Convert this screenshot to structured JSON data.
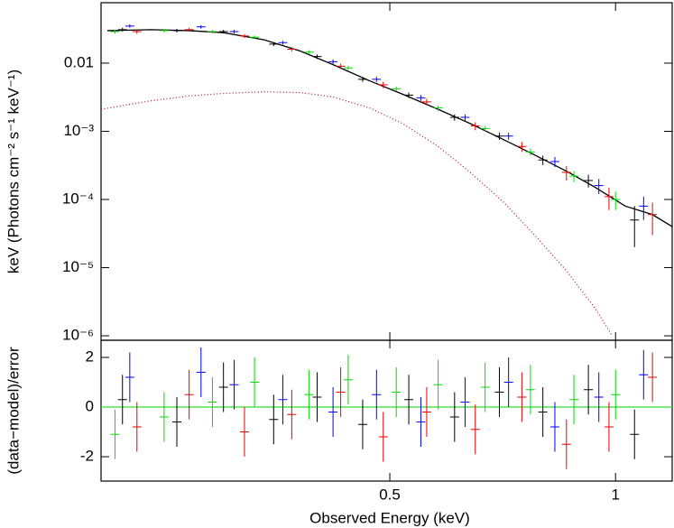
{
  "chart_data": [
    {
      "type": "errorbar",
      "y_label": "keV (Photons cm⁻² s⁻¹ keV⁻¹)",
      "log_x": true,
      "log_y": true,
      "xlim": [
        0.206,
        1.19
      ],
      "ylim": [
        8.6e-07,
        0.077
      ],
      "yticks": [
        {
          "value": 1e-06,
          "label": "10⁻⁶"
        },
        {
          "value": 1e-05,
          "label": "10⁻⁵"
        },
        {
          "value": 0.0001,
          "label": "10⁻⁴"
        },
        {
          "value": 0.001,
          "label": "10⁻³"
        },
        0.01
      ],
      "series": [
        {
          "color": "#000000",
          "x": [
            0.22,
            0.26,
            0.3,
            0.35,
            0.4,
            0.46,
            0.53,
            0.61,
            0.7,
            0.8,
            0.92,
            1.06
          ],
          "values": [
            0.031,
            0.03,
            0.029,
            0.019,
            0.0125,
            0.0058,
            0.0034,
            0.0016,
            0.00085,
            0.00038,
            0.00019,
            5e-05
          ],
          "errors": [
            0.002,
            0.0018,
            0.0017,
            0.0012,
            0.0009,
            0.0005,
            0.0003,
            0.00017,
            0.0001,
            6e-05,
            4e-05,
            3e-05
          ]
        },
        {
          "color": "#ee0000",
          "x": [
            0.23,
            0.27,
            0.32,
            0.37,
            0.43,
            0.49,
            0.56,
            0.65,
            0.75,
            0.86,
            0.98,
            1.12
          ],
          "values": [
            0.029,
            0.031,
            0.025,
            0.016,
            0.009,
            0.0048,
            0.0027,
            0.0012,
            0.0006,
            0.00025,
            0.00011,
            6e-05
          ],
          "errors": [
            0.002,
            0.0019,
            0.0016,
            0.0011,
            0.0008,
            0.0005,
            0.0003,
            0.00016,
            0.0001,
            6e-05,
            4e-05,
            3e-05
          ]
        },
        {
          "color": "#00dd00",
          "x": [
            0.215,
            0.25,
            0.29,
            0.33,
            0.39,
            0.44,
            0.51,
            0.58,
            0.67,
            0.77,
            0.88,
            1.0
          ],
          "values": [
            0.029,
            0.03,
            0.029,
            0.024,
            0.0145,
            0.0085,
            0.0042,
            0.0022,
            0.0011,
            0.0005,
            0.00022,
            0.0001
          ],
          "errors": [
            0.002,
            0.0018,
            0.0017,
            0.0014,
            0.001,
            0.0006,
            0.0003,
            0.0002,
            0.0001,
            6e-05,
            4e-05,
            3e-05
          ]
        },
        {
          "color": "#0000ff",
          "x": [
            0.225,
            0.28,
            0.31,
            0.36,
            0.42,
            0.48,
            0.55,
            0.63,
            0.72,
            0.83,
            0.95,
            1.09
          ],
          "values": [
            0.035,
            0.034,
            0.029,
            0.02,
            0.0105,
            0.0058,
            0.0031,
            0.0016,
            0.00085,
            0.00036,
            0.00016,
            8e-05
          ],
          "errors": [
            0.002,
            0.0019,
            0.0017,
            0.0012,
            0.0008,
            0.0005,
            0.0003,
            0.00017,
            0.0001,
            6e-05,
            4e-05,
            3e-05
          ]
        }
      ],
      "models": [
        {
          "color": "#000000",
          "style": "solid",
          "x": [
            0.21,
            0.24,
            0.27,
            0.3,
            0.34,
            0.38,
            0.42,
            0.47,
            0.52,
            0.58,
            0.64,
            0.71,
            0.78,
            0.86,
            0.94,
            1.03,
            1.12,
            1.19
          ],
          "values": [
            0.03,
            0.031,
            0.03,
            0.028,
            0.022,
            0.015,
            0.0095,
            0.0055,
            0.0035,
            0.0021,
            0.0013,
            0.00075,
            0.00045,
            0.00026,
            0.00015,
            8e-05,
            6e-05,
            4e-05
          ]
        },
        {
          "color": "#aa2222",
          "style": "dotted",
          "x": [
            0.206,
            0.24,
            0.27,
            0.3,
            0.34,
            0.38,
            0.42,
            0.47,
            0.52,
            0.58,
            0.64,
            0.71,
            0.78,
            0.86,
            0.94,
            0.99
          ],
          "values": [
            0.0021,
            0.0028,
            0.0033,
            0.0036,
            0.0038,
            0.0037,
            0.0032,
            0.0022,
            0.0013,
            0.0006,
            0.00025,
            9e-05,
            3e-05,
            9e-06,
            2.5e-06,
            1e-06
          ]
        }
      ]
    },
    {
      "type": "errorbar",
      "x_label": "Observed Energy (keV)",
      "y_label": "(data−model)/error",
      "log_x": true,
      "xlim": [
        0.206,
        1.19
      ],
      "ylim": [
        -2.98,
        2.69
      ],
      "xticks": [
        0.5,
        1
      ],
      "yticks": [
        -2,
        0,
        2
      ],
      "zero_line_color": "#33dd33",
      "series": [
        {
          "color": "#000000",
          "x": [
            0.22,
            0.26,
            0.3,
            0.35,
            0.4,
            0.46,
            0.53,
            0.61,
            0.7,
            0.8,
            0.92,
            1.06
          ],
          "values": [
            0.3,
            -0.6,
            0.8,
            -0.5,
            0.4,
            -0.7,
            0.3,
            -0.4,
            0.6,
            -0.2,
            0.7,
            -1.1
          ],
          "errors": [
            1,
            1,
            1,
            1,
            1,
            1,
            1,
            1,
            1,
            1,
            1,
            1
          ]
        },
        {
          "color": "#ee0000",
          "x": [
            0.23,
            0.27,
            0.32,
            0.37,
            0.43,
            0.49,
            0.56,
            0.65,
            0.75,
            0.86,
            0.98,
            1.12
          ],
          "values": [
            -0.8,
            0.5,
            -1.0,
            -0.3,
            0.6,
            -1.2,
            -0.2,
            -0.9,
            0.4,
            -1.5,
            -0.8,
            1.2
          ],
          "errors": [
            1,
            1,
            1,
            1,
            1,
            1,
            1,
            1,
            1,
            1,
            1,
            1
          ]
        },
        {
          "color": "#00dd00",
          "x": [
            0.215,
            0.25,
            0.29,
            0.33,
            0.39,
            0.44,
            0.51,
            0.58,
            0.67,
            0.77,
            0.88,
            1.0
          ],
          "values": [
            -1.1,
            -0.4,
            0.2,
            1.0,
            0.5,
            1.1,
            0.6,
            0.9,
            0.8,
            0.7,
            0.3,
            0.5
          ],
          "errors": [
            1,
            1,
            1,
            1,
            1,
            1,
            1,
            1,
            1,
            1,
            1,
            1
          ]
        },
        {
          "color": "#0000ff",
          "x": [
            0.225,
            0.28,
            0.31,
            0.36,
            0.42,
            0.48,
            0.55,
            0.63,
            0.72,
            0.83,
            0.95,
            1.09
          ],
          "values": [
            1.2,
            1.4,
            0.9,
            0.3,
            -0.2,
            0.5,
            -0.6,
            0.2,
            1.0,
            -0.8,
            0.4,
            1.3
          ],
          "errors": [
            1,
            1,
            1,
            1,
            1,
            1,
            1,
            1,
            1,
            1,
            1,
            1
          ]
        }
      ]
    }
  ]
}
